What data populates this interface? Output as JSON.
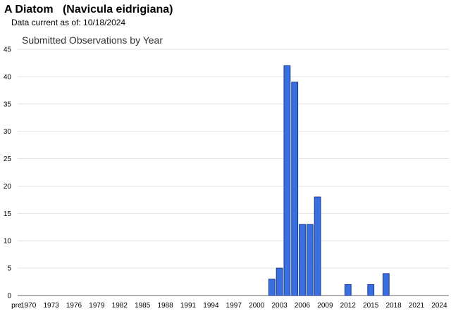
{
  "header": {
    "title": "A Diatom   (Navicula eidrigiana)",
    "data_current": "Data current as of: 10/18/2024"
  },
  "chart_data": {
    "type": "bar",
    "title": "Submitted Observations by Year",
    "xlabel": "",
    "ylabel": "",
    "ylim": [
      0,
      45
    ],
    "yticks": [
      0,
      5,
      10,
      15,
      20,
      25,
      30,
      35,
      40,
      45
    ],
    "grid": true,
    "legend": "none",
    "bar_color": "#3a6fe0",
    "bar_edge": "#1a3a90",
    "categories": [
      "pre",
      "1970",
      "1971",
      "1972",
      "1973",
      "1974",
      "1975",
      "1976",
      "1977",
      "1978",
      "1979",
      "1980",
      "1981",
      "1982",
      "1983",
      "1984",
      "1985",
      "1986",
      "1987",
      "1988",
      "1989",
      "1990",
      "1991",
      "1992",
      "1993",
      "1994",
      "1995",
      "1996",
      "1997",
      "1998",
      "1999",
      "2000",
      "2001",
      "2002",
      "2003",
      "2004",
      "2005",
      "2006",
      "2007",
      "2008",
      "2009",
      "2010",
      "2011",
      "2012",
      "2013",
      "2014",
      "2015",
      "2016",
      "2017",
      "2018",
      "2019",
      "2020",
      "2021",
      "2022",
      "2023",
      "2024"
    ],
    "values": [
      0,
      0,
      0,
      0,
      0,
      0,
      0,
      0,
      0,
      0,
      0,
      0,
      0,
      0,
      0,
      0,
      0,
      0,
      0,
      0,
      0,
      0,
      0,
      0,
      0,
      0,
      0,
      0,
      0,
      0,
      0,
      0,
      0,
      3,
      5,
      42,
      39,
      13,
      13,
      18,
      0,
      0,
      0,
      2,
      0,
      0,
      2,
      0,
      4,
      0,
      0,
      0,
      0,
      0,
      0,
      0
    ],
    "x_tick_labels": [
      "pre",
      "1970",
      "1973",
      "1976",
      "1979",
      "1982",
      "1985",
      "1988",
      "1991",
      "1994",
      "1997",
      "2000",
      "2003",
      "2006",
      "2009",
      "2012",
      "2015",
      "2018",
      "2021",
      "2024"
    ]
  }
}
